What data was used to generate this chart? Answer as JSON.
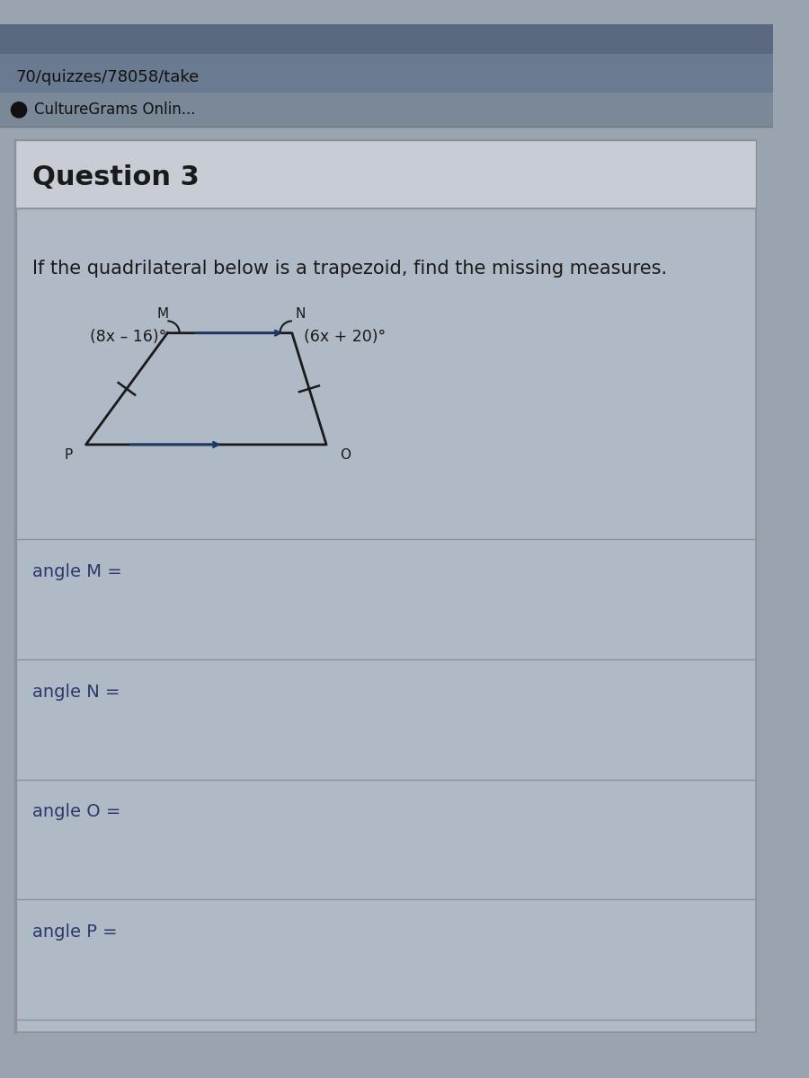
{
  "url_text": "70/quizzes/78058/take",
  "bookmark_text": "CultureGrams Onlin...",
  "question_header": "Question 3",
  "question_text": "If the quadrilateral below is a trapezoid, find the missing measures.",
  "angle_M_label": "(8x – 16)°",
  "angle_N_label": "(6x + 20)°",
  "vertex_M": "M",
  "vertex_N": "N",
  "vertex_O": "O",
  "vertex_P": "P",
  "answer_labels": [
    "angle M =",
    "angle N =",
    "angle O =",
    "angle P ="
  ],
  "text_color": "#1a1a1a",
  "answer_text_color": "#2a3a6a",
  "trapezoid_color": "#1a1a1a",
  "arrow_color": "#1a3a6a",
  "browser_tab_color": "#5a6880",
  "browser_url_color": "#6a7a90",
  "browser_bookmark_color": "#7a8898",
  "content_outer_color": "#9aa4b0",
  "content_bg_color": "#b0bac6",
  "header_bg_color": "#c8cdd5",
  "answer_section_bg": "#b8c2ce",
  "divider_color": "#8a9298"
}
